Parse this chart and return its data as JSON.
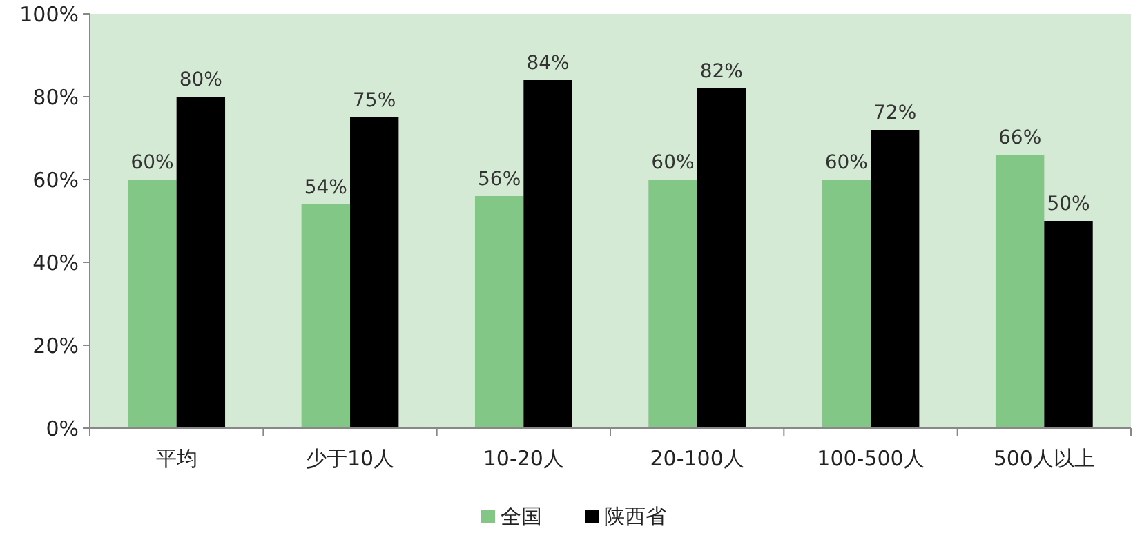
{
  "chart_data": {
    "type": "bar",
    "categories": [
      "平均",
      "少于10人",
      "10-20人",
      "20-100人",
      "100-500人",
      "500人以上"
    ],
    "series": [
      {
        "name": "全国",
        "color": "#82c785",
        "values": [
          60,
          54,
          56,
          60,
          60,
          66
        ],
        "value_labels": [
          "60%",
          "54%",
          "56%",
          "60%",
          "60%",
          "66%"
        ]
      },
      {
        "name": "陕西省",
        "color": "#000000",
        "values": [
          80,
          75,
          84,
          82,
          72,
          50
        ],
        "value_labels": [
          "80%",
          "75%",
          "84%",
          "82%",
          "72%",
          "50%"
        ]
      }
    ],
    "ylim": [
      0,
      100
    ],
    "yticks": [
      {
        "value": 0,
        "label": "0%"
      },
      {
        "value": 20,
        "label": "20%"
      },
      {
        "value": 40,
        "label": "40%"
      },
      {
        "value": 60,
        "label": "60%"
      },
      {
        "value": 80,
        "label": "80%"
      },
      {
        "value": 100,
        "label": "100%"
      }
    ],
    "legend": "bottom"
  }
}
